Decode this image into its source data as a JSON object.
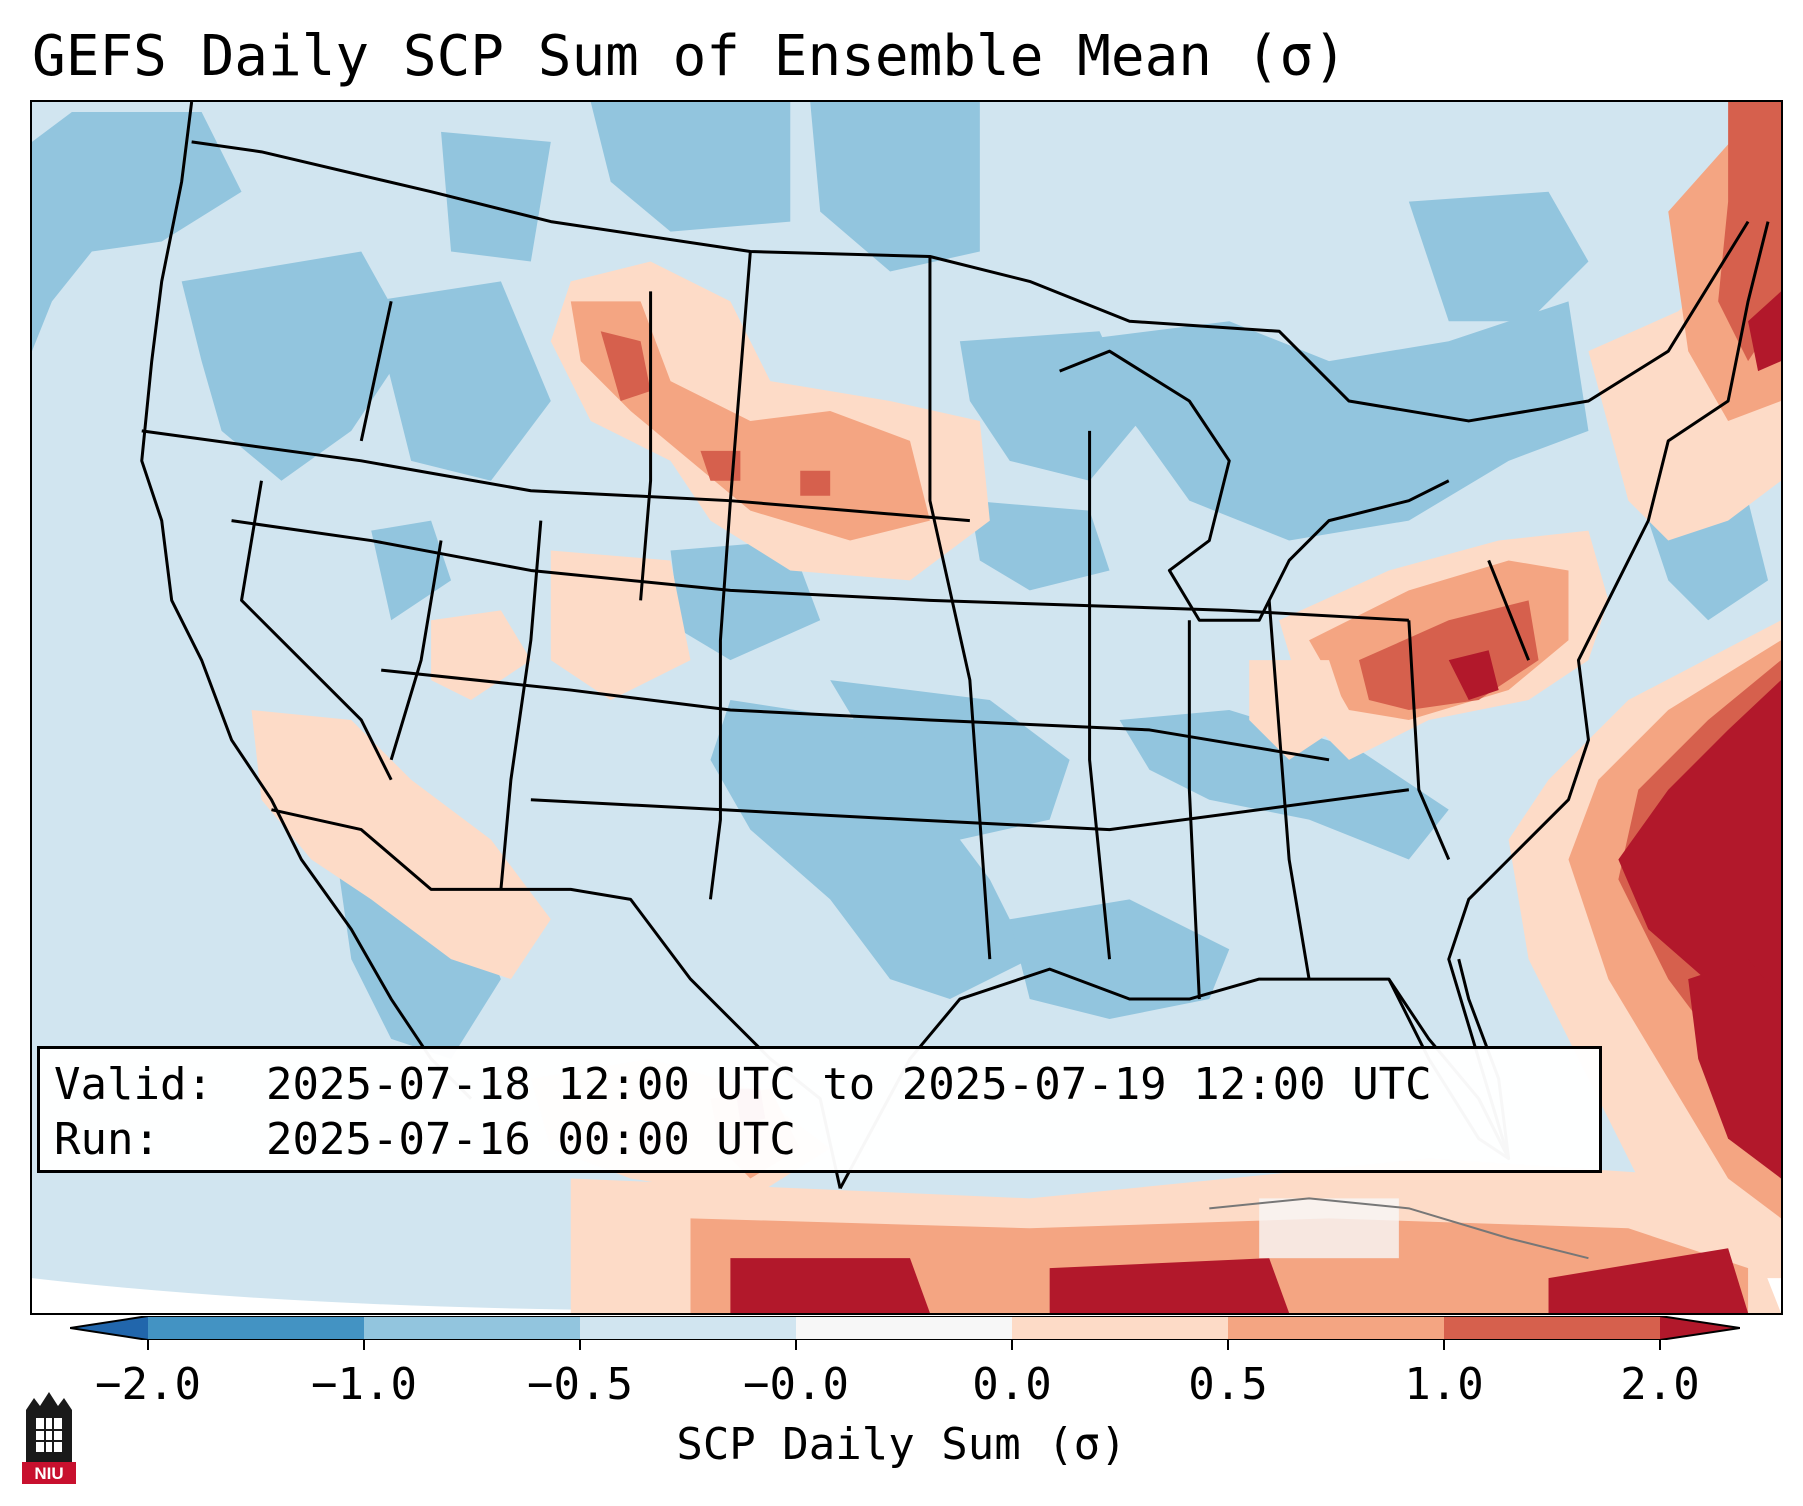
{
  "title": "GEFS Daily SCP Sum of Ensemble Mean (σ)",
  "info": {
    "valid_label": "Valid:",
    "valid_value": "2025-07-18 12:00 UTC to 2025-07-19 12:00 UTC",
    "run_label": "Run:",
    "run_value": "2025-07-16 00:00 UTC"
  },
  "colorbar": {
    "label": "SCP Daily Sum (σ)",
    "ticks": [
      "−2.0",
      "−1.0",
      "−0.5",
      "−0.0",
      "0.0",
      "0.5",
      "1.0",
      "2.0"
    ],
    "colors": {
      "under": "#2166ac",
      "bin_m2_m1": "#4393c3",
      "bin_m1_m05": "#92c5de",
      "bin_m05_0": "#d1e5f0",
      "bin_0": "#f7f7f7",
      "bin_0_05": "#fddbc7",
      "bin_05_1": "#f4a582",
      "bin_1_2": "#d6604d",
      "over": "#b2182b"
    }
  },
  "map": {
    "background_color": "#d1e5f0",
    "anomaly_regions": [
      {
        "name": "atlantic-strong-positive",
        "sigma": 2.0
      },
      {
        "name": "atlantic-positive",
        "sigma": 1.2
      },
      {
        "name": "mid-atlantic-positive",
        "sigma": 1.0
      },
      {
        "name": "northern-plains-positive",
        "sigma": 0.8
      },
      {
        "name": "montana-positive",
        "sigma": 0.6
      },
      {
        "name": "desert-southwest-slight-positive",
        "sigma": 0.2
      },
      {
        "name": "caribbean-positive",
        "sigma": 2.0
      },
      {
        "name": "western-negative",
        "sigma": -0.7
      },
      {
        "name": "texas-negative",
        "sigma": -0.7
      },
      {
        "name": "great-lakes-negative",
        "sigma": -0.7
      },
      {
        "name": "gulf-negative",
        "sigma": -0.7
      }
    ]
  },
  "logo": {
    "text": "NIU",
    "color": "#c8102e"
  }
}
